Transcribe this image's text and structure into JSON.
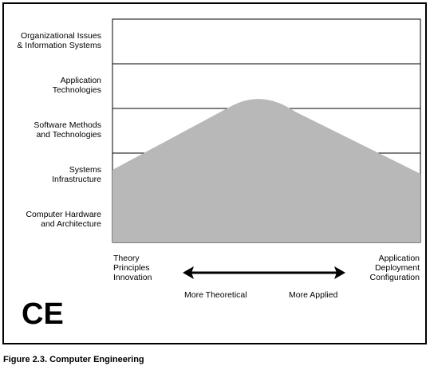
{
  "diagram": {
    "rows": [
      {
        "label": "Organizational Issues\n& Information Systems"
      },
      {
        "label": "Application\nTechnologies"
      },
      {
        "label": "Software Methods\nand Technologies"
      },
      {
        "label": "Systems\nInfrastructure"
      },
      {
        "label": "Computer Hardware\nand Architecture"
      }
    ],
    "left_axis_text": "Theory\nPrinciples\nInnovation",
    "right_axis_text": "Application\nDeployment\nConfiguration",
    "more_theoretical": "More Theoretical",
    "more_applied": "More Applied",
    "discipline_label": "CE",
    "fill_color": "#b8b8b8",
    "line_color": "#000000"
  },
  "caption": "Figure 2.3.  Computer Engineering"
}
